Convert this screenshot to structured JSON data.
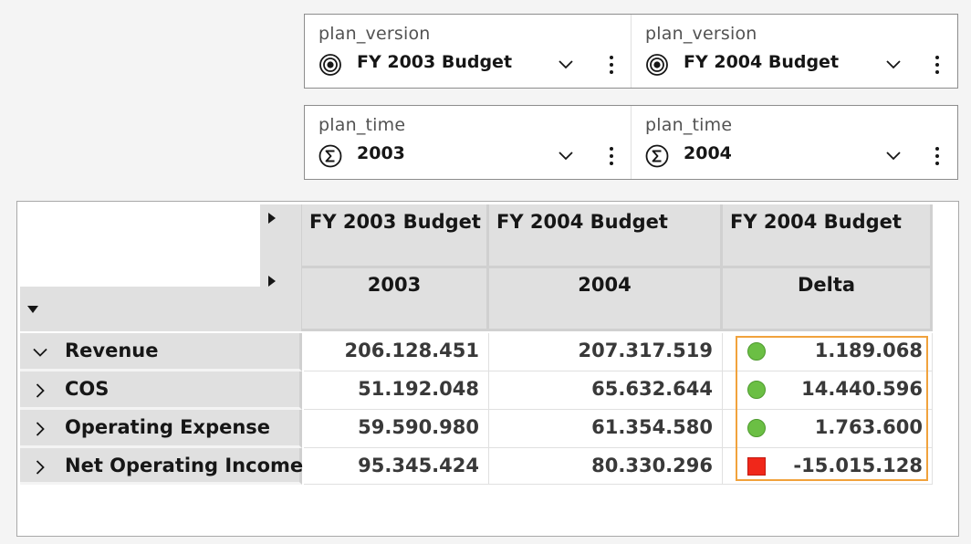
{
  "context": {
    "row1": [
      {
        "label": "plan_version",
        "value": "FY 2003 Budget",
        "icon": "target-icon"
      },
      {
        "label": "plan_version",
        "value": "FY 2004 Budget",
        "icon": "target-icon"
      }
    ],
    "row2": [
      {
        "label": "plan_time",
        "value": "2003",
        "icon": "sigma-icon"
      },
      {
        "label": "plan_time",
        "value": "2004",
        "icon": "sigma-icon"
      }
    ]
  },
  "crosstab": {
    "column_headers_level1": [
      "FY 2003 Budget",
      "FY 2004 Budget",
      "FY 2004 Budget"
    ],
    "column_headers_level2": [
      "2003",
      "2004",
      "Delta"
    ],
    "rows": [
      {
        "label": "Revenue",
        "expanded": true,
        "values": [
          "206.128.451",
          "207.317.519"
        ],
        "delta": "1.189.068",
        "indicator": "green-circle"
      },
      {
        "label": "COS",
        "expanded": false,
        "values": [
          "51.192.048",
          "65.632.644"
        ],
        "delta": "14.440.596",
        "indicator": "green-circle"
      },
      {
        "label": "Operating Expense",
        "expanded": false,
        "values": [
          "59.590.980",
          "61.354.580"
        ],
        "delta": "1.763.600",
        "indicator": "green-circle"
      },
      {
        "label": "Net Operating Income",
        "expanded": false,
        "values": [
          "95.345.424",
          "80.330.296"
        ],
        "delta": "-15.015.128",
        "indicator": "red-square"
      }
    ]
  },
  "colors": {
    "header_bg": "#e0e0e0",
    "positive_indicator": "#6bbf44",
    "negative_indicator": "#f0271a",
    "highlight_border": "#f1a23c"
  }
}
